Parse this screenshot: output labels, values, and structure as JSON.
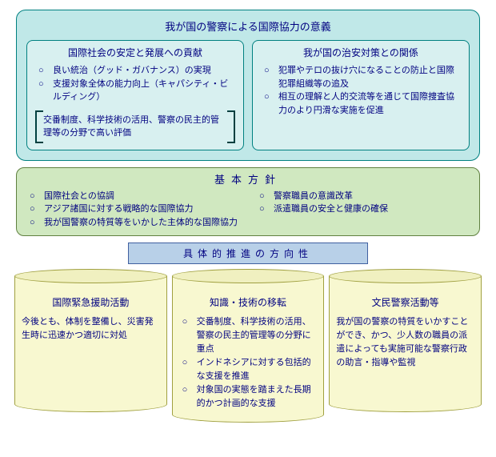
{
  "top": {
    "title": "我が国の警察による国際協力の意義",
    "left": {
      "title": "国際社会の安定と発展への貢献",
      "items": [
        "良い統治（グッド・ガバナンス）の実現",
        "支援対象全体の能力向上（キャパシティ・ビルディング）"
      ],
      "bracket": "交番制度、科学技術の活用、警察の民主的管理等の分野で高い評価"
    },
    "right": {
      "title": "我が国の治安対策との関係",
      "items": [
        "犯罪やテロの抜け穴になることの防止と国際犯罪組織等の追及",
        "相互の理解と人的交流等を通じて国際捜査協力のより円滑な実施を促進"
      ]
    }
  },
  "policy": {
    "title": "基本方針",
    "left": [
      "国際社会との協調",
      "アジア諸国に対する戦略的な国際協力",
      "我が国警察の特質等をいかした主体的な国際協力"
    ],
    "right": [
      "警察職員の意識改革",
      "派遣職員の安全と健康の確保"
    ]
  },
  "direction": "具体的推進の方向性",
  "cylinders": [
    {
      "title": "国際緊急援助活動",
      "text": "今後とも、体制を整備し、災害発生時に迅速かつ適切に対処"
    },
    {
      "title": "知識・技術の移転",
      "items": [
        "交番制度、科学技術の活用、警察の民主的管理等の分野に重点",
        "インドネシアに対する包括的な支援を推進",
        "対象国の実態を踏まえた長期的かつ計画的な支援"
      ]
    },
    {
      "title": "文民警察活動等",
      "text": "我が国の警察の特質をいかすことができ、かつ、少人数の職員の派遣によっても実施可能な警察行政の助言・指導や監視"
    }
  ]
}
